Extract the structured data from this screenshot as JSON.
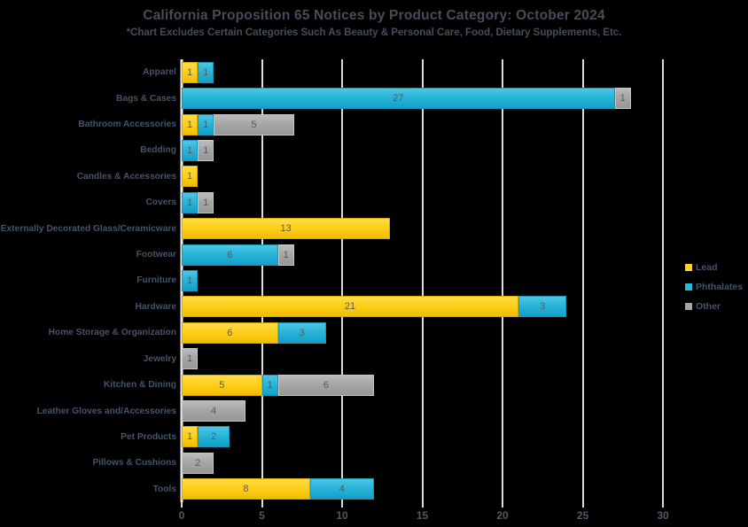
{
  "chart_data": {
    "type": "bar",
    "orientation": "horizontal",
    "stacked": true,
    "title": "California Proposition 65 Notices by Product Category: October 2024",
    "subtitle": "*Chart Excludes Certain Categories Such As Beauty & Personal Care, Food, Dietary Supplements, Etc.",
    "categories": [
      "Apparel",
      "Bags & Cases",
      "Bathroom Accessories",
      "Bedding",
      "Candles & Accessories",
      "Covers",
      "Externally Decorated Glass/Ceramicware",
      "Footwear",
      "Furniture",
      "Hardware",
      "Home Storage & Organization",
      "Jewelry",
      "Kitchen & Dining",
      "Leather Gloves and/Accessories",
      "Pet Products",
      "Pillows & Cushions",
      "Tools"
    ],
    "series": [
      {
        "name": "Lead",
        "color": "#FFD21E",
        "values": [
          1,
          0,
          1,
          0,
          1,
          0,
          13,
          0,
          0,
          21,
          6,
          0,
          5,
          0,
          1,
          0,
          8
        ]
      },
      {
        "name": "Phthalates",
        "color": "#2BB7DB",
        "values": [
          1,
          27,
          1,
          1,
          0,
          1,
          0,
          6,
          1,
          3,
          3,
          0,
          1,
          0,
          2,
          0,
          4
        ]
      },
      {
        "name": "Other",
        "color": "#A6A6A6",
        "values": [
          0,
          1,
          5,
          1,
          0,
          1,
          0,
          1,
          0,
          0,
          0,
          1,
          6,
          4,
          0,
          2,
          0
        ]
      }
    ],
    "xlim": [
      0,
      30
    ],
    "xticks": [
      0,
      5,
      10,
      15,
      20,
      25,
      30
    ],
    "legend_position": "right",
    "gridlines": "vertical",
    "colors": {
      "background": "#000000",
      "title_text": "#434E59",
      "category_text": "#44546A",
      "value_text": "#595959",
      "axis_text": "#505A64",
      "gridline": "#DCDCDC"
    }
  }
}
